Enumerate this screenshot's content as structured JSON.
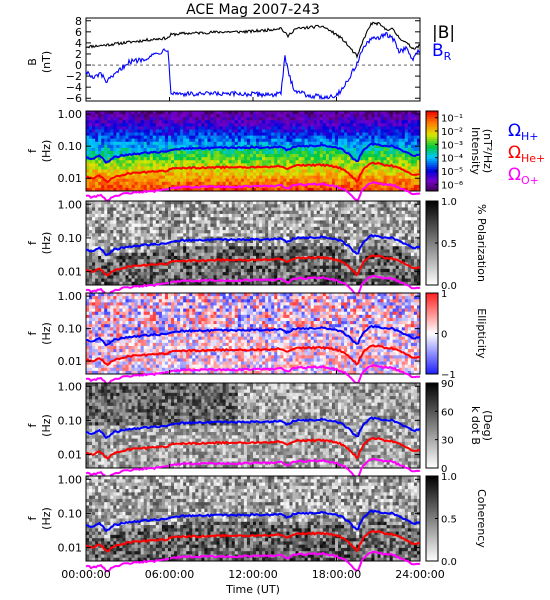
{
  "chart_data": {
    "title": "ACE Mag 2007-243",
    "xlabel": "Time (UT)",
    "x_ticks": [
      "00:00:00",
      "06:00:00",
      "12:00:00",
      "18:00:00",
      "24:00:00"
    ],
    "x_tick_hours": [
      0,
      6,
      12,
      18,
      24
    ],
    "freq_ticks": [
      "1.00",
      "0.10",
      "0.01"
    ],
    "freq_tick_values": [
      1.0,
      0.1,
      0.01
    ],
    "panels": [
      {
        "type": "line",
        "ylabel_1": "B",
        "ylabel_2": "(nT)",
        "ylim": [
          -6.5,
          8.5
        ],
        "y_ticks": [
          "8",
          "6",
          "4",
          "2",
          "0",
          "−2",
          "−4",
          "−6"
        ],
        "y_tick_values": [
          8,
          6,
          4,
          2,
          0,
          -2,
          -4,
          -6
        ],
        "series": [
          {
            "name": "|B|",
            "color": "#000000",
            "x": [
              0,
              1,
              2,
              3,
              4,
              5,
              5.9,
              6.1,
              7,
              8,
              9,
              10,
              11,
              12,
              12.5,
              13,
              14,
              14.5,
              15,
              16,
              17,
              18,
              18.5,
              19,
              19.5,
              20,
              20.5,
              21,
              21.5,
              22,
              22.5,
              23,
              23.5,
              24
            ],
            "y": [
              3.3,
              3.5,
              3.8,
              4.1,
              4.4,
              4.7,
              4.9,
              5.5,
              5.7,
              5.8,
              5.9,
              6.0,
              6.0,
              6.1,
              6.2,
              6.3,
              6.7,
              5.2,
              6.5,
              6.8,
              7.0,
              5.5,
              4.5,
              3.0,
              1.5,
              5.0,
              7.5,
              7.5,
              6.5,
              6.5,
              5.0,
              4.0,
              3.0,
              3.5
            ]
          },
          {
            "name": "B_R",
            "color": "#0000ff",
            "x": [
              0,
              0.5,
              1,
              1.5,
              2,
              3,
              4,
              5,
              5.9,
              6.1,
              7,
              8,
              9,
              10,
              11,
              12,
              13,
              14,
              14.3,
              14.6,
              15,
              16,
              17,
              18,
              18.5,
              19,
              19.5,
              20,
              20.5,
              21,
              21.5,
              22,
              22.5,
              23,
              23.5,
              24
            ],
            "y": [
              -1.0,
              -2.5,
              -1.5,
              -3.0,
              -2.0,
              0.5,
              1.0,
              2.0,
              3.0,
              -5.0,
              -5.2,
              -5.3,
              -5.2,
              -5.3,
              -5.2,
              -5.3,
              -5.3,
              -5.3,
              1.5,
              -2.0,
              -4.5,
              -5.5,
              -5.8,
              -5.5,
              -4.0,
              -2.0,
              0.5,
              3.5,
              4.5,
              5.0,
              5.5,
              5.0,
              2.5,
              3.0,
              1.0,
              3.0
            ]
          }
        ]
      },
      {
        "type": "heatmap",
        "ylabel_1": "f",
        "ylabel_2": "(Hz)",
        "colorbar": "rainbow",
        "cbar_label": "Intensity",
        "cbar_unit": "(nT²/Hz)",
        "cbar_ticks": [
          "10⁻¹",
          "10⁻²",
          "10⁻³",
          "10⁻⁴",
          "10⁻⁵",
          "10⁻⁶"
        ],
        "cbar_tick_values": [
          -1,
          -2,
          -3,
          -4,
          -5,
          -6
        ],
        "cbar_range": [
          -6.5,
          -0.5
        ]
      },
      {
        "type": "heatmap",
        "ylabel_1": "f",
        "ylabel_2": "(Hz)",
        "colorbar": "gray",
        "cbar_label": "% Polarization",
        "cbar_ticks": [
          "1.0",
          "0.5",
          "0.0"
        ],
        "cbar_tick_values": [
          1.0,
          0.5,
          0.0
        ],
        "cbar_range": [
          0,
          1
        ]
      },
      {
        "type": "heatmap",
        "ylabel_1": "f",
        "ylabel_2": "(Hz)",
        "colorbar": "bluewhitered",
        "cbar_label": "Ellipticity",
        "cbar_ticks": [
          "1",
          "0",
          "−1"
        ],
        "cbar_tick_values": [
          1,
          0,
          -1
        ],
        "cbar_range": [
          -1,
          1
        ]
      },
      {
        "type": "heatmap",
        "ylabel_1": "f",
        "ylabel_2": "(Hz)",
        "colorbar": "gray",
        "cbar_label": "k dot B",
        "cbar_unit": "(Deg)",
        "cbar_ticks": [
          "90",
          "60",
          "30",
          "0"
        ],
        "cbar_tick_values": [
          90,
          60,
          30,
          0
        ],
        "cbar_range": [
          0,
          90
        ]
      },
      {
        "type": "heatmap",
        "ylabel_1": "f",
        "ylabel_2": "(Hz)",
        "colorbar": "gray",
        "cbar_label": "Coherency",
        "cbar_ticks": [
          "1.0",
          "0.5",
          "0.0"
        ],
        "cbar_tick_values": [
          1.0,
          0.5,
          0.0
        ],
        "cbar_range": [
          0,
          1
        ]
      }
    ],
    "gyrofrequency_series": [
      {
        "name": "Ω_H+",
        "color": "#0000ff",
        "x": [
          0,
          0.5,
          1,
          1.5,
          2,
          3,
          4,
          5,
          5.9,
          6.1,
          7,
          8,
          9,
          10,
          11,
          12,
          13,
          14,
          14.5,
          15,
          16,
          17,
          18,
          18.5,
          19,
          19.5,
          20,
          20.5,
          21,
          21.5,
          22,
          22.5,
          23,
          23.5,
          24
        ],
        "y": [
          0.045,
          0.04,
          0.05,
          0.03,
          0.045,
          0.055,
          0.06,
          0.065,
          0.07,
          0.08,
          0.085,
          0.085,
          0.087,
          0.088,
          0.088,
          0.09,
          0.09,
          0.095,
          0.075,
          0.1,
          0.102,
          0.105,
          0.09,
          0.075,
          0.05,
          0.03,
          0.08,
          0.115,
          0.115,
          0.1,
          0.1,
          0.08,
          0.065,
          0.05,
          0.055
        ]
      },
      {
        "name": "Ω_He+",
        "color": "#ff0000",
        "x": [
          0,
          0.5,
          1,
          1.5,
          2,
          3,
          4,
          5,
          5.9,
          6.1,
          7,
          8,
          9,
          10,
          11,
          12,
          13,
          14,
          14.5,
          15,
          16,
          17,
          18,
          18.5,
          19,
          19.5,
          20,
          20.5,
          21,
          21.5,
          22,
          22.5,
          23,
          23.5,
          24
        ],
        "y": [
          0.011,
          0.01,
          0.0125,
          0.0075,
          0.011,
          0.014,
          0.015,
          0.016,
          0.0175,
          0.02,
          0.021,
          0.021,
          0.022,
          0.022,
          0.022,
          0.0225,
          0.0225,
          0.024,
          0.019,
          0.025,
          0.0255,
          0.026,
          0.0225,
          0.019,
          0.0125,
          0.0075,
          0.02,
          0.029,
          0.029,
          0.025,
          0.025,
          0.02,
          0.016,
          0.0125,
          0.014
        ]
      },
      {
        "name": "Ω_O+",
        "color": "#ff00ff",
        "x": [
          0,
          0.5,
          1,
          1.5,
          2,
          3,
          4,
          5,
          5.9,
          6.1,
          7,
          8,
          9,
          10,
          11,
          12,
          13,
          14,
          14.5,
          15,
          16,
          17,
          18,
          18.5,
          19,
          19.5,
          20,
          20.5,
          21,
          21.5,
          22,
          22.5,
          23,
          23.5,
          24
        ],
        "y": [
          0.0028,
          0.0025,
          0.0031,
          0.0019,
          0.0028,
          0.0034,
          0.0038,
          0.004,
          0.0044,
          0.005,
          0.0053,
          0.0053,
          0.0055,
          0.0055,
          0.0055,
          0.0056,
          0.0056,
          0.006,
          0.0047,
          0.0062,
          0.0064,
          0.0066,
          0.0056,
          0.0047,
          0.0031,
          0.0019,
          0.005,
          0.0072,
          0.0072,
          0.0062,
          0.0062,
          0.005,
          0.004,
          0.0031,
          0.0034
        ]
      }
    ],
    "legend": {
      "mag_labels": [
        {
          "text": "|B|",
          "color": "#000000"
        },
        {
          "text": "B",
          "sub": "R",
          "color": "#0000ff"
        }
      ],
      "gyro_labels": [
        {
          "text": "Ω",
          "sub": "H+",
          "color": "#0000ff"
        },
        {
          "text": "Ω",
          "sub": "He+",
          "color": "#ff0000"
        },
        {
          "text": "Ω",
          "sub": "O+",
          "color": "#ff00ff"
        }
      ]
    }
  }
}
